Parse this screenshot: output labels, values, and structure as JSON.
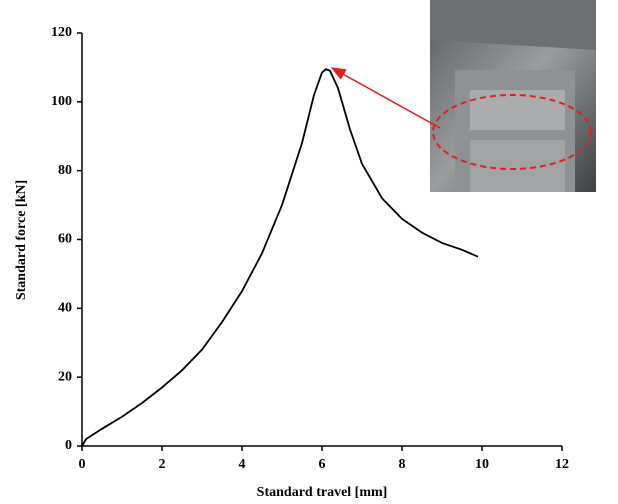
{
  "chart_data": {
    "type": "line",
    "x_label": "Standard travel [mm]",
    "y_label": "Standard force [kN]",
    "x": [
      0,
      0.1,
      0.5,
      1,
      1.5,
      2,
      2.5,
      3,
      3.5,
      4,
      4.5,
      5,
      5.5,
      5.8,
      6,
      6.1,
      6.2,
      6.4,
      6.7,
      7,
      7.5,
      8,
      8.5,
      9,
      9.5,
      9.9
    ],
    "series": [
      {
        "color": "#000000",
        "values": [
          0,
          2,
          5,
          8.5,
          12.5,
          17,
          22,
          28,
          36,
          45,
          56,
          70,
          88,
          102,
          108.5,
          109.5,
          109,
          104,
          92,
          82,
          72,
          66,
          62,
          59,
          57,
          55
        ]
      }
    ],
    "xlim": [
      0,
      12
    ],
    "xticks": [
      0,
      2,
      4,
      6,
      8,
      10,
      12
    ],
    "ylim": [
      0,
      120
    ],
    "yticks": [
      0,
      20,
      40,
      60,
      80,
      100,
      120
    ],
    "grid": false
  }
}
